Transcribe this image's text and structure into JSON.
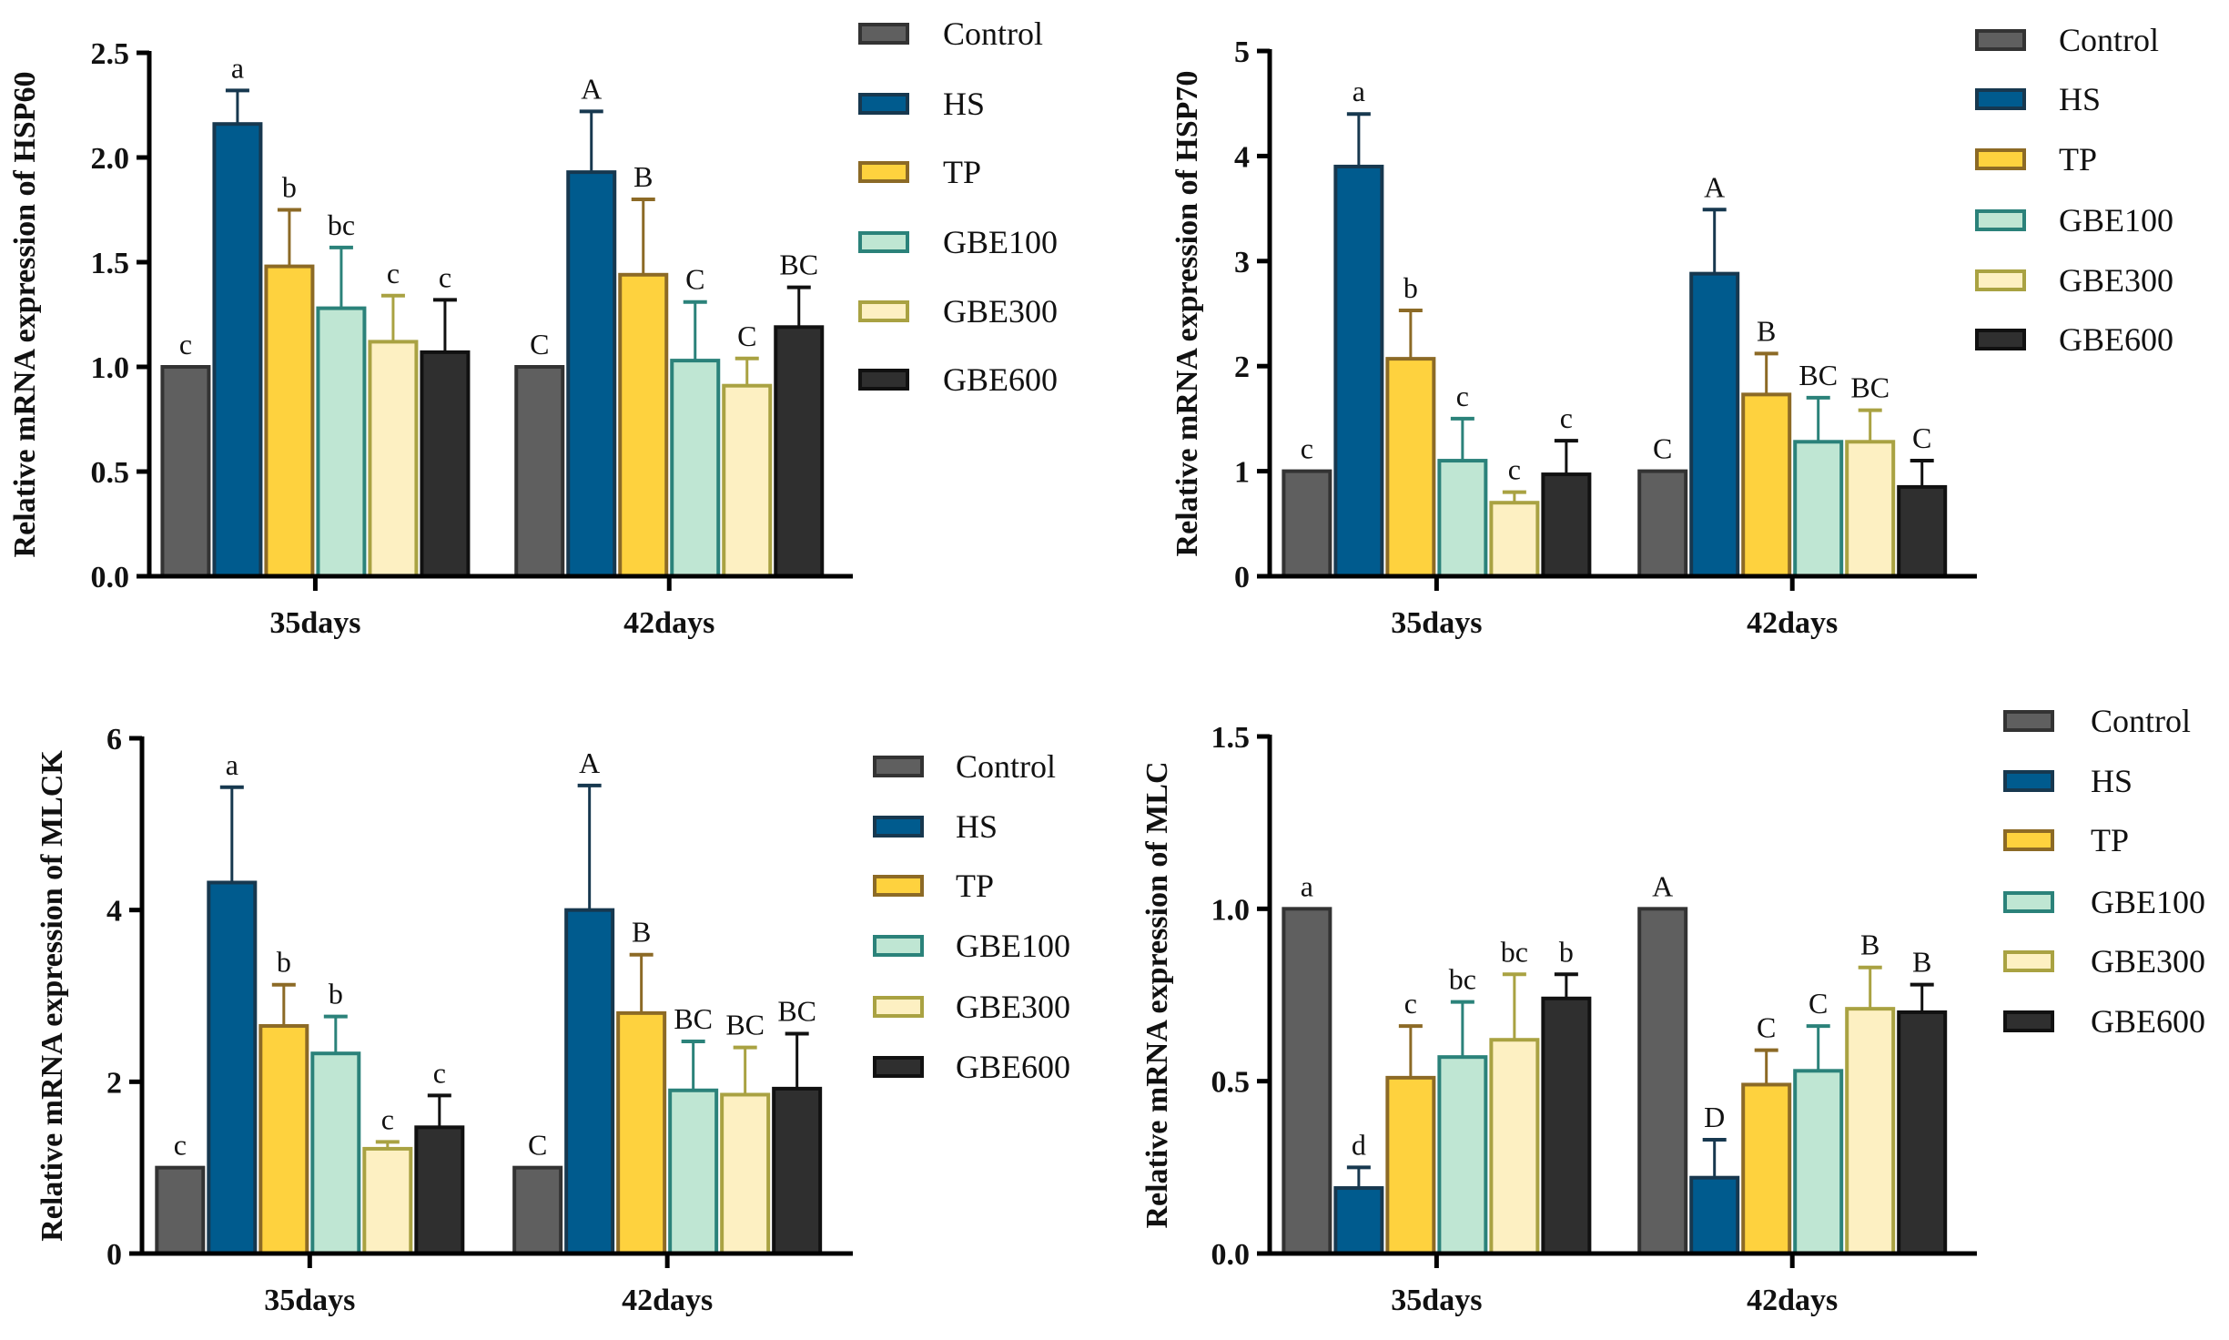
{
  "groups": [
    {
      "name": "Control",
      "fill": "#5f5f5f",
      "stroke": "#333333"
    },
    {
      "name": "HS",
      "fill": "#005b8e",
      "stroke": "#17384f"
    },
    {
      "name": "TP",
      "fill": "#fed23e",
      "stroke": "#8c6a26"
    },
    {
      "name": "GBE100",
      "fill": "#bfe6d3",
      "stroke": "#2b827a"
    },
    {
      "name": "GBE300",
      "fill": "#fdf0c2",
      "stroke": "#a9a242"
    },
    {
      "name": "GBE600",
      "fill": "#2f2f2f",
      "stroke": "#111111"
    }
  ],
  "chart_data": [
    {
      "type": "bar",
      "ylabel": "Relative mRNA expression of HSP60",
      "categories": [
        "35days",
        "42days"
      ],
      "ylim": [
        0,
        2.5
      ],
      "yticks": [
        "0.0",
        "0.5",
        "1.0",
        "1.5",
        "2.0",
        "2.5"
      ],
      "legend": "right",
      "series": [
        {
          "name": "Control",
          "values": [
            1.0,
            1.0
          ],
          "error_top": [
            null,
            null
          ],
          "letters": [
            "c",
            "C"
          ]
        },
        {
          "name": "HS",
          "values": [
            2.16,
            1.93
          ],
          "error_top": [
            2.32,
            2.22
          ],
          "letters": [
            "a",
            "A"
          ]
        },
        {
          "name": "TP",
          "values": [
            1.48,
            1.44
          ],
          "error_top": [
            1.75,
            1.8
          ],
          "letters": [
            "b",
            "B"
          ]
        },
        {
          "name": "GBE100",
          "values": [
            1.28,
            1.03
          ],
          "error_top": [
            1.57,
            1.31
          ],
          "letters": [
            "bc",
            "C"
          ]
        },
        {
          "name": "GBE300",
          "values": [
            1.12,
            0.91
          ],
          "error_top": [
            1.34,
            1.04
          ],
          "letters": [
            "c",
            "C"
          ]
        },
        {
          "name": "GBE600",
          "values": [
            1.07,
            1.19
          ],
          "error_top": [
            1.32,
            1.38
          ],
          "letters": [
            "c",
            "BC"
          ]
        }
      ]
    },
    {
      "type": "bar",
      "ylabel": "Relative mRNA expression of HSP70",
      "categories": [
        "35days",
        "42days"
      ],
      "ylim": [
        0,
        5
      ],
      "yticks": [
        "0",
        "1",
        "2",
        "3",
        "4",
        "5"
      ],
      "legend": "right",
      "series": [
        {
          "name": "Control",
          "values": [
            1.0,
            1.0
          ],
          "error_top": [
            null,
            null
          ],
          "letters": [
            "c",
            "C"
          ]
        },
        {
          "name": "HS",
          "values": [
            3.9,
            2.88
          ],
          "error_top": [
            4.4,
            3.49
          ],
          "letters": [
            "a",
            "A"
          ]
        },
        {
          "name": "TP",
          "values": [
            2.07,
            1.73
          ],
          "error_top": [
            2.53,
            2.12
          ],
          "letters": [
            "b",
            "B"
          ]
        },
        {
          "name": "GBE100",
          "values": [
            1.1,
            1.28
          ],
          "error_top": [
            1.5,
            1.7
          ],
          "letters": [
            "c",
            "BC"
          ]
        },
        {
          "name": "GBE300",
          "values": [
            0.7,
            1.28
          ],
          "error_top": [
            0.8,
            1.58
          ],
          "letters": [
            "c",
            "BC"
          ]
        },
        {
          "name": "GBE600",
          "values": [
            0.97,
            0.85
          ],
          "error_top": [
            1.29,
            1.1
          ],
          "letters": [
            "c",
            "C"
          ]
        }
      ]
    },
    {
      "type": "bar",
      "ylabel": "Relative mRNA expression of MLCK",
      "categories": [
        "35days",
        "42days"
      ],
      "ylim": [
        0,
        6
      ],
      "yticks": [
        "0",
        "2",
        "4",
        "6"
      ],
      "legend": "right",
      "series": [
        {
          "name": "Control",
          "values": [
            1.0,
            1.0
          ],
          "error_top": [
            null,
            null
          ],
          "letters": [
            "c",
            "C"
          ]
        },
        {
          "name": "HS",
          "values": [
            4.32,
            4.0
          ],
          "error_top": [
            5.43,
            5.45
          ],
          "letters": [
            "a",
            "A"
          ]
        },
        {
          "name": "TP",
          "values": [
            2.65,
            2.8
          ],
          "error_top": [
            3.13,
            3.48
          ],
          "letters": [
            "b",
            "B"
          ]
        },
        {
          "name": "GBE100",
          "values": [
            2.33,
            1.9
          ],
          "error_top": [
            2.76,
            2.47
          ],
          "letters": [
            "b",
            "BC"
          ]
        },
        {
          "name": "GBE300",
          "values": [
            1.22,
            1.85
          ],
          "error_top": [
            1.3,
            2.4
          ],
          "letters": [
            "c",
            "BC"
          ]
        },
        {
          "name": "GBE600",
          "values": [
            1.47,
            1.92
          ],
          "error_top": [
            1.84,
            2.56
          ],
          "letters": [
            "c",
            "BC"
          ]
        }
      ]
    },
    {
      "type": "bar",
      "ylabel": "Relative mRNA expression of MLC",
      "categories": [
        "35days",
        "42days"
      ],
      "ylim": [
        0,
        1.5
      ],
      "yticks": [
        "0.0",
        "0.5",
        "1.0",
        "1.5"
      ],
      "legend": "right",
      "series": [
        {
          "name": "Control",
          "values": [
            1.0,
            1.0
          ],
          "error_top": [
            null,
            null
          ],
          "letters": [
            "a",
            "A"
          ]
        },
        {
          "name": "HS",
          "values": [
            0.19,
            0.22
          ],
          "error_top": [
            0.25,
            0.33
          ],
          "letters": [
            "d",
            "D"
          ]
        },
        {
          "name": "TP",
          "values": [
            0.51,
            0.49
          ],
          "error_top": [
            0.66,
            0.59
          ],
          "letters": [
            "c",
            "C"
          ]
        },
        {
          "name": "GBE100",
          "values": [
            0.57,
            0.53
          ],
          "error_top": [
            0.73,
            0.66
          ],
          "letters": [
            "bc",
            "C"
          ]
        },
        {
          "name": "GBE300",
          "values": [
            0.62,
            0.71
          ],
          "error_top": [
            0.81,
            0.83
          ],
          "letters": [
            "bc",
            "B"
          ]
        },
        {
          "name": "GBE600",
          "values": [
            0.74,
            0.7
          ],
          "error_top": [
            0.81,
            0.78
          ],
          "letters": [
            "b",
            "B"
          ]
        }
      ]
    }
  ]
}
